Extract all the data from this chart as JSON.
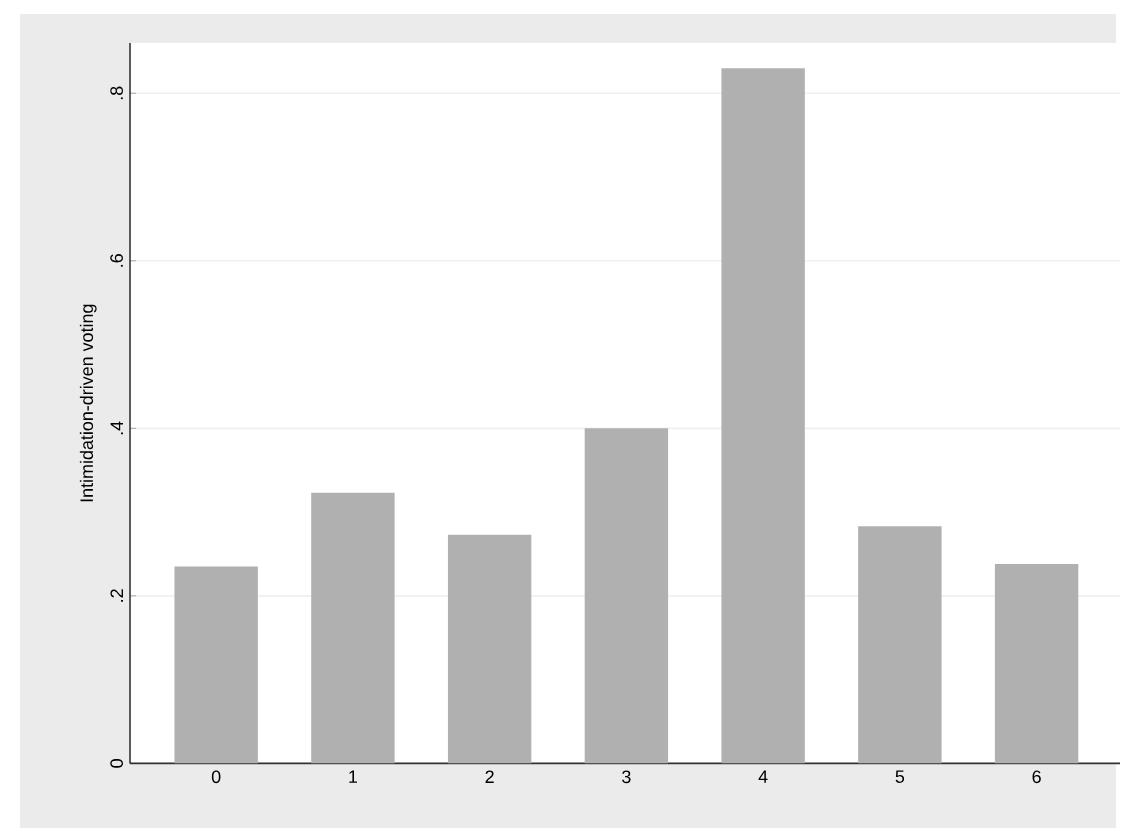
{
  "chart_data": {
    "type": "bar",
    "ylabel": "Intimidation-driven voting",
    "categories": [
      "0",
      "1",
      "2",
      "3",
      "4",
      "5",
      "6"
    ],
    "values": [
      0.235,
      0.323,
      0.273,
      0.4,
      0.83,
      0.283,
      0.238
    ],
    "color": "#b0b0b0",
    "ylim": [
      0,
      0.86
    ],
    "yticks": [
      0,
      {
        "value": 0.2,
        "label": ".2"
      },
      {
        "value": 0.4,
        "label": ".4"
      },
      {
        "value": 0.6,
        "label": ".6"
      },
      {
        "value": 0.8,
        "label": ".8"
      }
    ],
    "grid": "y"
  }
}
